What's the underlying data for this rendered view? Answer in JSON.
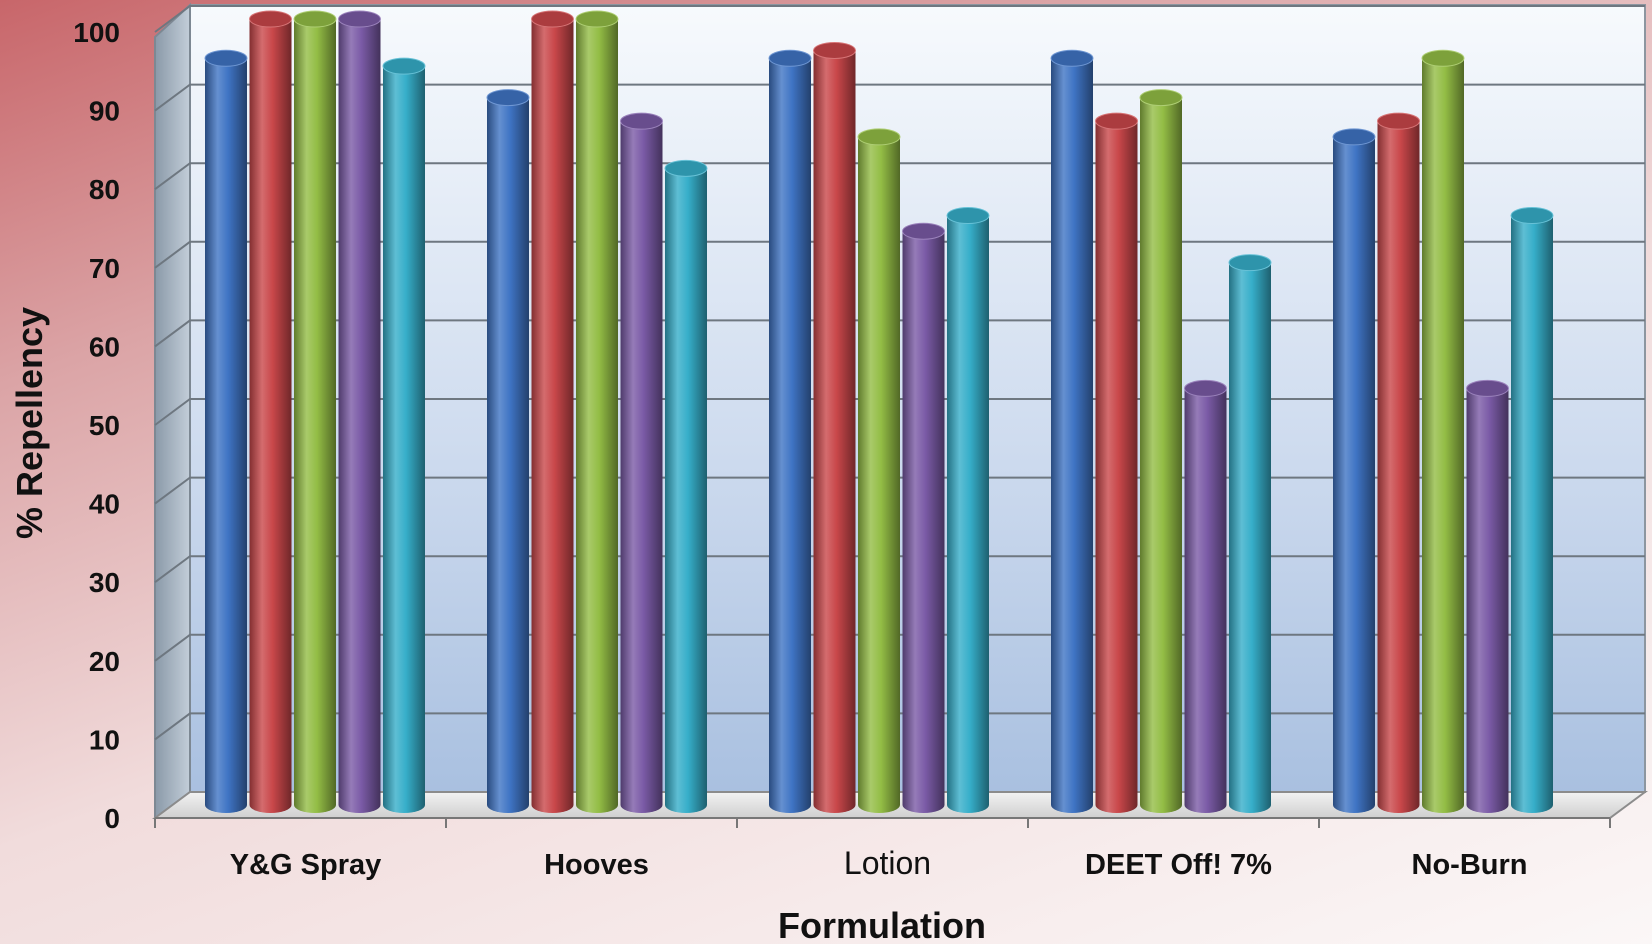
{
  "chart_data": {
    "type": "bar",
    "xlabel": "Formulation",
    "ylabel": "% Repellency",
    "ylim": [
      0,
      100
    ],
    "yticks": [
      "0",
      "10",
      "20",
      "30",
      "40",
      "50",
      "60",
      "70",
      "80",
      "90",
      "100"
    ],
    "grid": true,
    "legend": "none",
    "categories": [
      "Y&G Spray",
      "Hooves",
      "Lotion",
      "DEET Off! 7%",
      "No-Burn"
    ],
    "series": [
      {
        "color": "#3f74c4",
        "values": [
          95,
          90,
          95,
          95,
          85
        ]
      },
      {
        "color": "#c9474a",
        "values": [
          100,
          100,
          96,
          87,
          87
        ]
      },
      {
        "color": "#93bd45",
        "values": [
          100,
          100,
          85,
          90,
          95
        ]
      },
      {
        "color": "#7a5aa6",
        "values": [
          100,
          87,
          73,
          53,
          53
        ]
      },
      {
        "color": "#36aec9",
        "values": [
          94,
          81,
          75,
          69,
          75
        ]
      }
    ]
  }
}
